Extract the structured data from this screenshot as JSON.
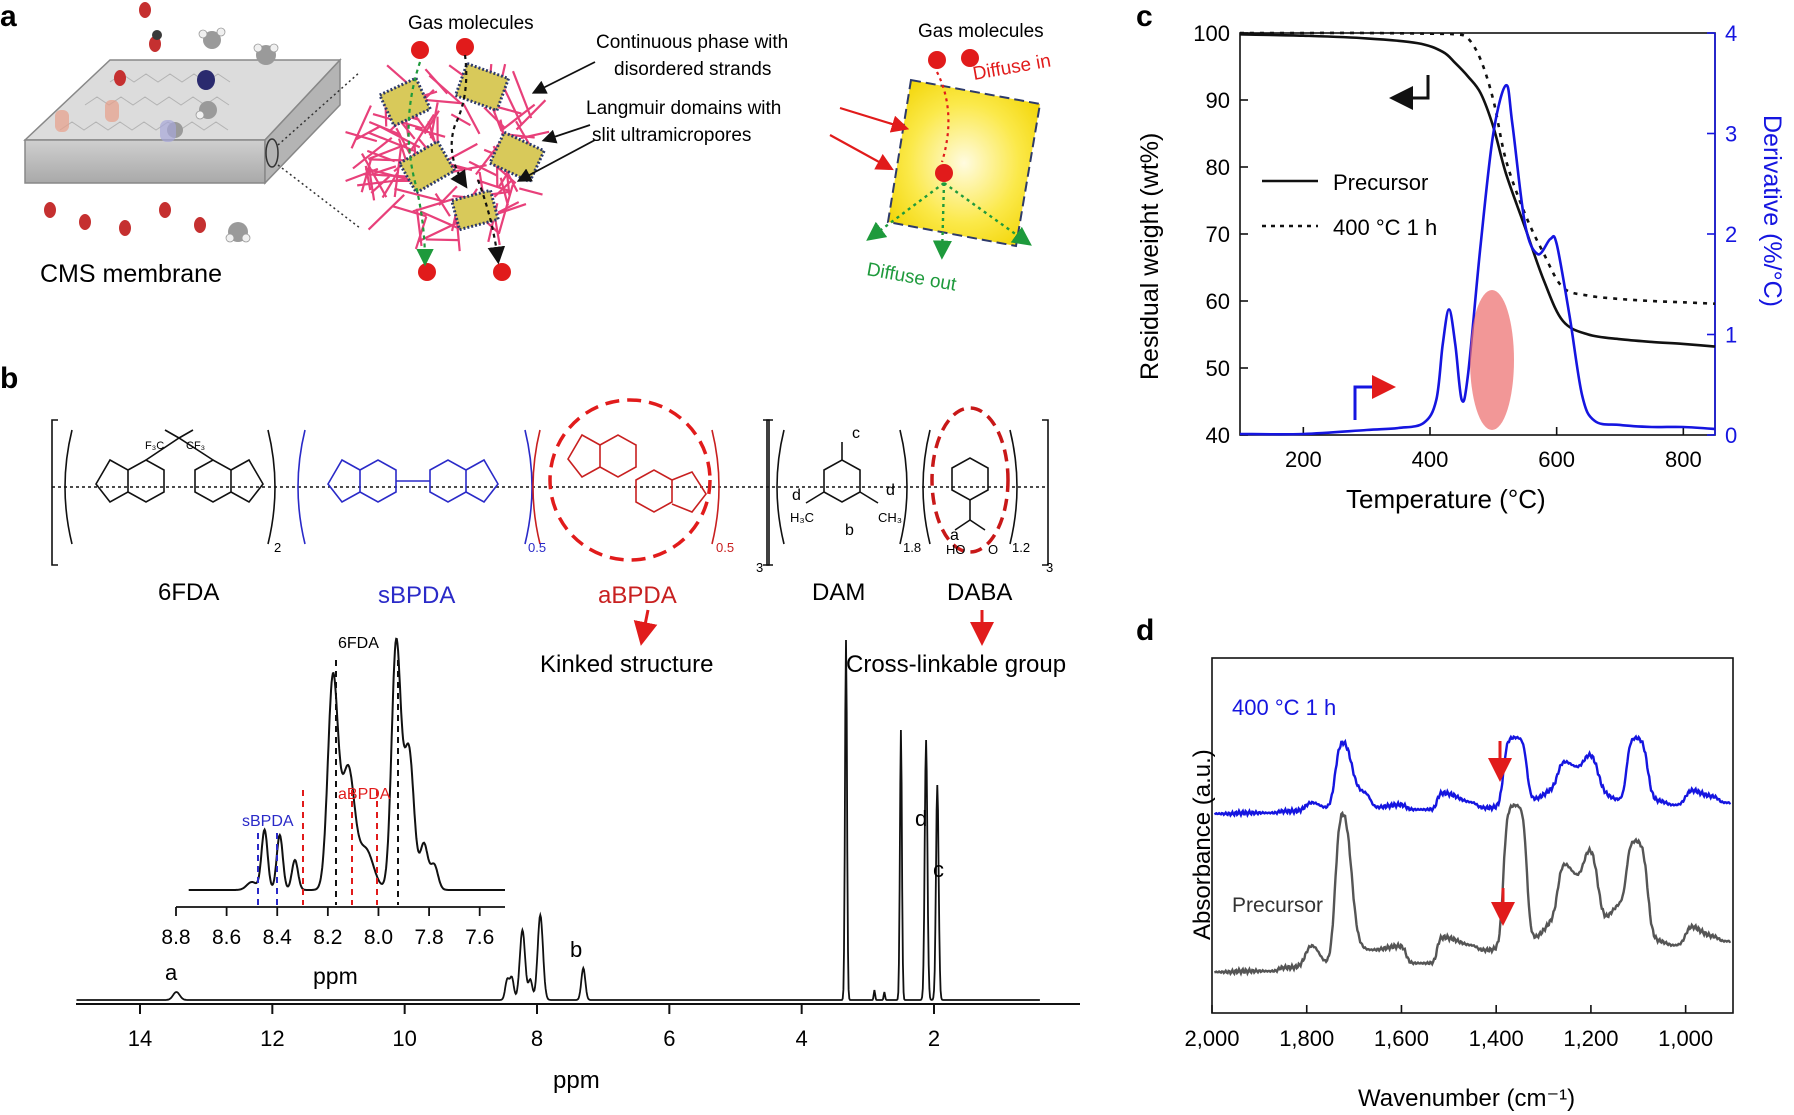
{
  "colors": {
    "blue": "#1515e0",
    "red": "#e11b1b",
    "green": "#1e9a3c",
    "pink": "#e8407a",
    "gray": "#555555",
    "yellow": "#f7e21a"
  },
  "panel_a": {
    "letter": "a",
    "membrane_label": "CMS membrane",
    "gas_molecules_1": "Gas molecules",
    "gas_molecules_2": "Gas molecules",
    "continuous_phase": [
      "Continuous phase with",
      "disordered strands"
    ],
    "langmuir": [
      "Langmuir domains with",
      "slit ultramicropores"
    ],
    "diffuse_in": "Diffuse in",
    "diffuse_out": "Diffuse out"
  },
  "panel_b": {
    "letter": "b",
    "monomers": [
      "6FDA",
      "sBPDA",
      "aBPDA",
      "DAM",
      "DABA"
    ],
    "kinked": "Kinked structure",
    "crosslink": "Cross-linkable group",
    "struct_text": {
      "cf3a": "F₃C",
      "cf3b": "CF₃",
      "sub2": "2",
      "sub05a": "0.5",
      "sub05b": "0.5",
      "sub3a": "3",
      "sub18": "1.8",
      "sub12": "1.2",
      "sub3b": "3",
      "lc": "c",
      "ld1": "d",
      "ld2": "d",
      "lb": "b",
      "la": "a",
      "h3c1": "H₃C",
      "ch3": "CH₃",
      "ho": "HO",
      "o": "O"
    },
    "nmr": {
      "xlabel": "ppm",
      "ticks": [
        "14",
        "12",
        "10",
        "8",
        "6",
        "4",
        "2"
      ],
      "peak_labels": [
        "a",
        "b",
        "d",
        "c"
      ],
      "inset": {
        "xlabel": "ppm",
        "ticks": [
          "8.8",
          "8.6",
          "8.4",
          "8.2",
          "8.0",
          "7.8",
          "7.6"
        ],
        "labels": [
          "6FDA",
          "aBPDA",
          "sBPDA"
        ]
      }
    }
  },
  "chart_data": [
    {
      "type": "line",
      "panel": "c",
      "title": "",
      "xlabel": "Temperature (°C)",
      "ylabel": "Residual weight (wt%)",
      "y2label": "Derivative (%/°C)",
      "xlim": [
        100,
        850
      ],
      "ylim": [
        40,
        100
      ],
      "y2lim": [
        0,
        4
      ],
      "xticks": [
        "200",
        "400",
        "600",
        "800"
      ],
      "yticks": [
        "40",
        "50",
        "60",
        "70",
        "80",
        "90",
        "100"
      ],
      "y2ticks": [
        "0",
        "1",
        "2",
        "3",
        "4"
      ],
      "legend": [
        "Precursor",
        "400 °C 1 h"
      ],
      "series": [
        {
          "name": "Precursor",
          "axis": "left",
          "x": [
            100,
            200,
            300,
            380,
            420,
            440,
            460,
            480,
            500,
            520,
            550,
            580,
            610,
            650,
            700,
            750,
            800,
            850
          ],
          "values": [
            99.8,
            99.6,
            99.2,
            98.5,
            97.2,
            95.5,
            93.5,
            91,
            86,
            79,
            71,
            63,
            57,
            55,
            54.3,
            53.9,
            53.6,
            53.2
          ]
        },
        {
          "name": "400 °C 1 h",
          "axis": "left",
          "x": [
            100,
            200,
            300,
            400,
            440,
            460,
            480,
            500,
            520,
            550,
            580,
            610,
            650,
            700,
            750,
            800,
            850
          ],
          "values": [
            100,
            100,
            100,
            99.9,
            99.8,
            99.2,
            96,
            90,
            81,
            73,
            67,
            62,
            60.8,
            60.3,
            60,
            59.8,
            59.6
          ]
        },
        {
          "name": "Derivative precursor",
          "axis": "right",
          "x": [
            100,
            200,
            300,
            350,
            390,
            410,
            420,
            430,
            440,
            450,
            460,
            480,
            500,
            520,
            530,
            550,
            570,
            590,
            600,
            620,
            640,
            660,
            700,
            750,
            800,
            850
          ],
          "values": [
            0.01,
            0.01,
            0.05,
            0.07,
            0.12,
            0.35,
            0.9,
            1.25,
            0.9,
            0.35,
            0.6,
            1.9,
            3,
            3.48,
            3.1,
            2.1,
            1.8,
            1.95,
            1.9,
            1.2,
            0.4,
            0.14,
            0.1,
            0.08,
            0.08,
            0.06
          ]
        }
      ]
    },
    {
      "type": "line",
      "panel": "d",
      "title": "",
      "xlabel": "Wavenumber (cm⁻¹)",
      "ylabel": "Absorbance (a.u.)",
      "xlim": [
        2000,
        900
      ],
      "xticks": [
        "2,000",
        "1,800",
        "1,600",
        "1,400",
        "1,200",
        "1,000"
      ],
      "series": [
        {
          "name": "400 °C 1 h",
          "x": [
            2000,
            1900,
            1820,
            1785,
            1760,
            1720,
            1690,
            1640,
            1620,
            1560,
            1490,
            1470,
            1410,
            1360,
            1310,
            1290,
            1250,
            1230,
            1200,
            1170,
            1150,
            1100,
            1060,
            1020,
            980,
            960,
            900
          ],
          "values": [
            0.05,
            0.06,
            0.08,
            0.2,
            0.1,
            0.95,
            0.3,
            0.12,
            0.16,
            0.1,
            0.3,
            0.18,
            0.12,
            0.95,
            0.2,
            0.35,
            0.7,
            0.55,
            0.8,
            0.3,
            0.2,
            0.95,
            0.2,
            0.15,
            0.35,
            0.25,
            0.18
          ]
        },
        {
          "name": "Precursor",
          "x": [
            2000,
            1900,
            1820,
            1785,
            1760,
            1720,
            1690,
            1640,
            1620,
            1560,
            1490,
            1470,
            1410,
            1360,
            1310,
            1290,
            1250,
            1230,
            1200,
            1170,
            1150,
            1100,
            1060,
            1020,
            980,
            960,
            900
          ],
          "values": [
            0.0,
            0.01,
            0.05,
            0.35,
            0.05,
            1.95,
            0.25,
            0.25,
            0.3,
            0.1,
            0.4,
            0.3,
            0.25,
            1.9,
            0.35,
            0.6,
            1.3,
            1.0,
            1.5,
            0.5,
            0.8,
            1.5,
            0.35,
            0.3,
            0.55,
            0.4,
            0.35
          ]
        }
      ],
      "labels": [
        "400 °C 1 h",
        "Precursor"
      ]
    }
  ],
  "panel_c_letter": "c",
  "panel_d_letter": "d"
}
